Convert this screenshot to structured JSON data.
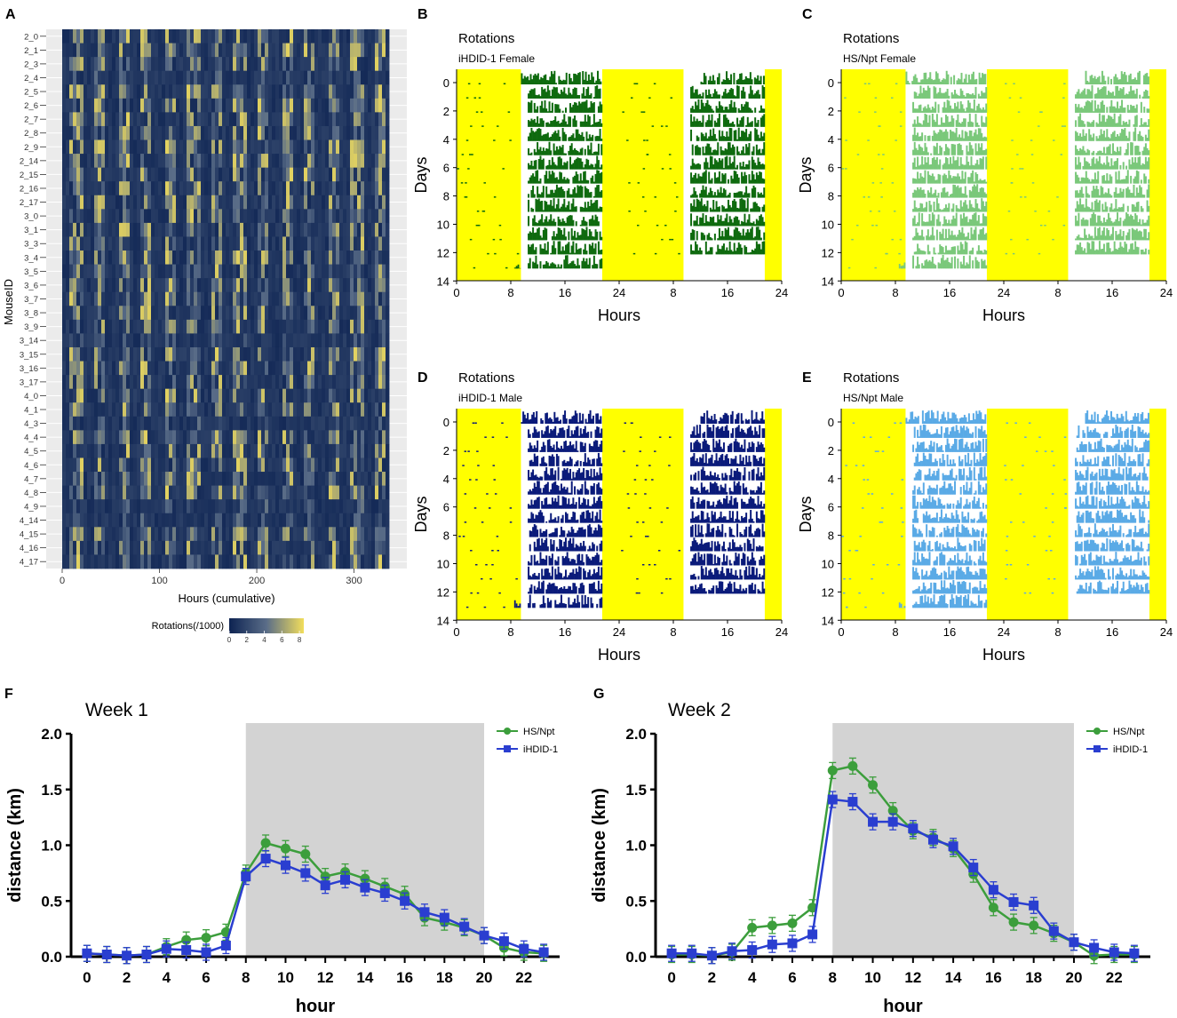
{
  "colors": {
    "heat_low": "#0d2352",
    "heat_mid": "#5a6d88",
    "heat_high": "#f2de5c",
    "light_phase": "#ffff00",
    "iHDID_female": "#0e6a0e",
    "HS_female": "#7ac87a",
    "iHDID_male": "#0a1a7a",
    "HS_male": "#5aaae6",
    "grid_bg": "#ebebeb",
    "HS_line": "#3c9e3c",
    "iHDID_line": "#2a3ed0",
    "shade": "#d3d3d3"
  },
  "panels": {
    "A": {
      "letter": "A",
      "ylabel": "MouseID",
      "xlabel": "Hours (cumulative)",
      "x_ticks": [
        "0",
        "100",
        "200",
        "300"
      ],
      "x_range": [
        0,
        336
      ],
      "mouse_ids": [
        "2_0",
        "2_1",
        "2_3",
        "2_4",
        "2_5",
        "2_6",
        "2_7",
        "2_8",
        "2_9",
        "2_14",
        "2_15",
        "2_16",
        "2_17",
        "3_0",
        "3_1",
        "3_3",
        "3_4",
        "3_5",
        "3_6",
        "3_7",
        "3_8",
        "3_9",
        "3_14",
        "3_15",
        "3_16",
        "3_17",
        "4_0",
        "4_1",
        "4_3",
        "4_4",
        "4_5",
        "4_6",
        "4_7",
        "4_8",
        "4_9",
        "4_14",
        "4_15",
        "4_16",
        "4_17"
      ],
      "legend_title": "Rotations(/1000)",
      "legend_ticks": [
        "0",
        "2",
        "4",
        "6",
        "8"
      ],
      "legend_range": [
        0,
        8.5
      ]
    },
    "actograms": [
      {
        "letter": "B",
        "title": "Rotations",
        "subtitle": "iHDID-1 Female",
        "color_key": "iHDID_female",
        "ylabel": "Days",
        "xlabel": "Hours",
        "y_ticks": [
          "0",
          "2",
          "4",
          "6",
          "8",
          "10",
          "12",
          "14"
        ],
        "x_ticks": [
          "0",
          "8",
          "16",
          "24",
          "8",
          "16",
          "24"
        ],
        "light_periods_hours": [
          [
            0,
            9.5
          ],
          [
            21.5,
            33.5
          ],
          [
            45.5,
            48
          ]
        ]
      },
      {
        "letter": "C",
        "title": "Rotations",
        "subtitle": "HS/Npt Female",
        "color_key": "HS_female",
        "ylabel": "Days",
        "xlabel": "Hours",
        "y_ticks": [
          "0",
          "2",
          "4",
          "6",
          "8",
          "10",
          "12",
          "14"
        ],
        "x_ticks": [
          "0",
          "8",
          "16",
          "24",
          "8",
          "16",
          "24"
        ],
        "light_periods_hours": [
          [
            0,
            9.5
          ],
          [
            21.5,
            33.5
          ],
          [
            45.5,
            48
          ]
        ]
      },
      {
        "letter": "D",
        "title": "Rotations",
        "subtitle": "iHDID-1 Male",
        "color_key": "iHDID_male",
        "ylabel": "Days",
        "xlabel": "Hours",
        "y_ticks": [
          "0",
          "2",
          "4",
          "6",
          "8",
          "10",
          "12",
          "14"
        ],
        "x_ticks": [
          "0",
          "8",
          "16",
          "24",
          "8",
          "16",
          "24"
        ],
        "light_periods_hours": [
          [
            0,
            9.5
          ],
          [
            21.5,
            33.5
          ],
          [
            45.5,
            48
          ]
        ]
      },
      {
        "letter": "E",
        "title": "Rotations",
        "subtitle": "HS/Npt Male",
        "color_key": "HS_male",
        "ylabel": "Days",
        "xlabel": "Hours",
        "y_ticks": [
          "0",
          "2",
          "4",
          "6",
          "8",
          "10",
          "12",
          "14"
        ],
        "x_ticks": [
          "0",
          "8",
          "16",
          "24",
          "8",
          "16",
          "24"
        ],
        "light_periods_hours": [
          [
            0,
            9.5
          ],
          [
            21.5,
            33.5
          ],
          [
            45.5,
            48
          ]
        ]
      }
    ]
  },
  "chart_data": [
    {
      "type": "line",
      "letter": "F",
      "title": "Week 1",
      "xlabel": "hour",
      "ylabel": "distance (km)",
      "x": [
        0,
        1,
        2,
        3,
        4,
        5,
        6,
        7,
        8,
        9,
        10,
        11,
        12,
        13,
        14,
        15,
        16,
        17,
        18,
        19,
        20,
        21,
        22,
        23
      ],
      "x_ticks": [
        "0",
        "2",
        "4",
        "6",
        "8",
        "10",
        "12",
        "14",
        "16",
        "18",
        "20",
        "22"
      ],
      "y_ticks": [
        "0.0",
        "0.5",
        "1.0",
        "1.5",
        "2.0"
      ],
      "ylim": [
        0,
        2.0
      ],
      "xlim": [
        -0.8,
        23.8
      ],
      "shaded_region": [
        8,
        20
      ],
      "legend_position": "top-right",
      "series": [
        {
          "name": "HS/Npt",
          "marker": "circle",
          "color_key": "HS_line",
          "values": [
            0.03,
            0.02,
            0.01,
            0.02,
            0.09,
            0.15,
            0.17,
            0.22,
            0.75,
            1.02,
            0.97,
            0.92,
            0.72,
            0.76,
            0.7,
            0.63,
            0.56,
            0.35,
            0.31,
            0.26,
            0.19,
            0.08,
            0.04,
            0.03
          ]
        },
        {
          "name": "iHDID-1",
          "marker": "square",
          "color_key": "iHDID_line",
          "values": [
            0.03,
            0.02,
            0.01,
            0.02,
            0.07,
            0.06,
            0.04,
            0.1,
            0.72,
            0.88,
            0.82,
            0.75,
            0.64,
            0.69,
            0.62,
            0.57,
            0.5,
            0.4,
            0.35,
            0.27,
            0.19,
            0.14,
            0.07,
            0.04
          ]
        }
      ]
    },
    {
      "type": "line",
      "letter": "G",
      "title": "Week 2",
      "xlabel": "hour",
      "ylabel": "distance (km)",
      "x": [
        0,
        1,
        2,
        3,
        4,
        5,
        6,
        7,
        8,
        9,
        10,
        11,
        12,
        13,
        14,
        15,
        16,
        17,
        18,
        19,
        20,
        21,
        22,
        23
      ],
      "x_ticks": [
        "0",
        "2",
        "4",
        "6",
        "8",
        "10",
        "12",
        "14",
        "16",
        "18",
        "20",
        "22"
      ],
      "y_ticks": [
        "0.0",
        "0.5",
        "1.0",
        "1.5",
        "2.0"
      ],
      "ylim": [
        0,
        2.0
      ],
      "xlim": [
        -0.8,
        23.8
      ],
      "shaded_region": [
        8,
        20
      ],
      "legend_position": "top-right",
      "series": [
        {
          "name": "HS/Npt",
          "marker": "circle",
          "color_key": "HS_line",
          "values": [
            0.02,
            0.02,
            0.01,
            0.04,
            0.26,
            0.28,
            0.3,
            0.44,
            1.67,
            1.71,
            1.54,
            1.31,
            1.13,
            1.07,
            0.97,
            0.74,
            0.44,
            0.31,
            0.28,
            0.21,
            0.13,
            0.01,
            0.02,
            0.02
          ]
        },
        {
          "name": "iHDID-1",
          "marker": "square",
          "color_key": "iHDID_line",
          "values": [
            0.03,
            0.03,
            0.01,
            0.05,
            0.06,
            0.11,
            0.12,
            0.2,
            1.41,
            1.39,
            1.21,
            1.21,
            1.15,
            1.05,
            0.99,
            0.8,
            0.6,
            0.49,
            0.46,
            0.23,
            0.13,
            0.08,
            0.04,
            0.03
          ]
        }
      ]
    }
  ]
}
